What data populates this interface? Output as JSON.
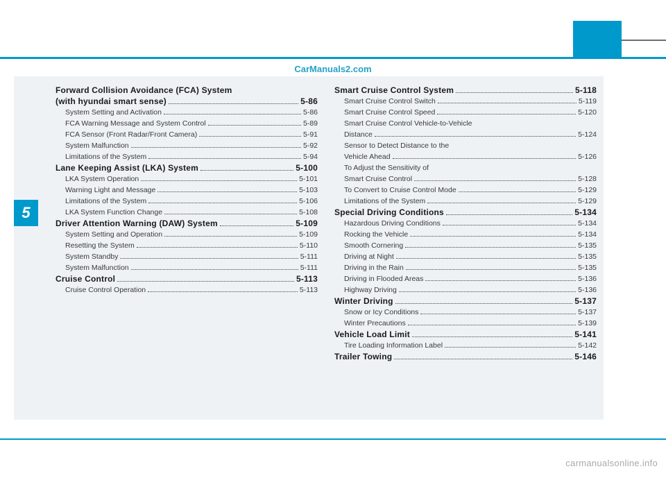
{
  "watermark": "CarManuals2.com",
  "chapter_number": "5",
  "footer": "carmanualsonline.info",
  "colors": {
    "accent": "#0099cc",
    "bg_panel": "#eef2f5",
    "text": "#2a2a2a",
    "footer": "#aaaaaa"
  },
  "left": [
    {
      "type": "h",
      "label": "Forward Collision Avoidance (FCA) System"
    },
    {
      "type": "h",
      "label": "(with hyundai smart sense)",
      "page": "5-86"
    },
    {
      "type": "sub",
      "label": "System Setting and Activation",
      "page": "5-86"
    },
    {
      "type": "sub",
      "label": "FCA Warning Message and System Control",
      "page": "5-89"
    },
    {
      "type": "sub",
      "label": "FCA Sensor (Front Radar/Front Camera)",
      "page": "5-91"
    },
    {
      "type": "sub",
      "label": "System Malfunction",
      "page": "5-92"
    },
    {
      "type": "sub",
      "label": "Limitations of the System",
      "page": "5-94"
    },
    {
      "type": "h",
      "label": "Lane Keeping Assist (LKA) System",
      "page": "5-100"
    },
    {
      "type": "sub",
      "label": "LKA System Operation",
      "page": "5-101"
    },
    {
      "type": "sub",
      "label": "Warning Light and Message",
      "page": "5-103"
    },
    {
      "type": "sub",
      "label": "Limitations of the System",
      "page": "5-106"
    },
    {
      "type": "sub",
      "label": "LKA System Function Change",
      "page": "5-108"
    },
    {
      "type": "h",
      "label": "Driver Attention Warning (DAW) System",
      "page": "5-109"
    },
    {
      "type": "sub",
      "label": "System Setting and Operation",
      "page": "5-109"
    },
    {
      "type": "sub",
      "label": "Resetting the System",
      "page": "5-110"
    },
    {
      "type": "sub",
      "label": "System Standby",
      "page": "5-111"
    },
    {
      "type": "sub",
      "label": "System Malfunction",
      "page": "5-111"
    },
    {
      "type": "h",
      "label": "Cruise Control",
      "page": "5-113"
    },
    {
      "type": "sub",
      "label": "Cruise Control Operation",
      "page": "5-113"
    }
  ],
  "right": [
    {
      "type": "h",
      "label": "Smart Cruise Control System",
      "page": "5-118"
    },
    {
      "type": "sub",
      "label": "Smart Cruise Control Switch",
      "page": "5-119"
    },
    {
      "type": "sub",
      "label": "Smart Cruise Control Speed",
      "page": "5-120"
    },
    {
      "type": "sub",
      "label": "Smart Cruise Control Vehicle-to-Vehicle"
    },
    {
      "type": "sub",
      "label": "Distance",
      "page": "5-124"
    },
    {
      "type": "sub",
      "label": "Sensor to Detect Distance to the"
    },
    {
      "type": "sub",
      "label": "Vehicle Ahead",
      "page": "5-126"
    },
    {
      "type": "sub",
      "label": "To Adjust the Sensitivity of"
    },
    {
      "type": "sub",
      "label": "Smart Cruise Control",
      "page": "5-128"
    },
    {
      "type": "sub",
      "label": "To Convert to Cruise Control Mode",
      "page": "5-129"
    },
    {
      "type": "sub",
      "label": "Limitations of the System",
      "page": "5-129"
    },
    {
      "type": "h",
      "label": "Special Driving Conditions",
      "page": "5-134"
    },
    {
      "type": "sub",
      "label": "Hazardous Driving Conditions",
      "page": "5-134"
    },
    {
      "type": "sub",
      "label": "Rocking the Vehicle",
      "page": "5-134"
    },
    {
      "type": "sub",
      "label": "Smooth Cornering",
      "page": "5-135"
    },
    {
      "type": "sub",
      "label": "Driving at Night",
      "page": "5-135"
    },
    {
      "type": "sub",
      "label": "Driving in the Rain",
      "page": "5-135"
    },
    {
      "type": "sub",
      "label": "Driving in Flooded Areas",
      "page": "5-136"
    },
    {
      "type": "sub",
      "label": "Highway Driving",
      "page": "5-136"
    },
    {
      "type": "h",
      "label": "Winter Driving",
      "page": "5-137"
    },
    {
      "type": "sub",
      "label": "Snow or Icy Conditions",
      "page": "5-137"
    },
    {
      "type": "sub",
      "label": "Winter Precautions",
      "page": "5-139"
    },
    {
      "type": "h",
      "label": "Vehicle Load Limit",
      "page": "5-141"
    },
    {
      "type": "sub",
      "label": "Tire Loading Information Label",
      "page": "5-142"
    },
    {
      "type": "h",
      "label": "Trailer Towing",
      "page": "5-146"
    }
  ]
}
